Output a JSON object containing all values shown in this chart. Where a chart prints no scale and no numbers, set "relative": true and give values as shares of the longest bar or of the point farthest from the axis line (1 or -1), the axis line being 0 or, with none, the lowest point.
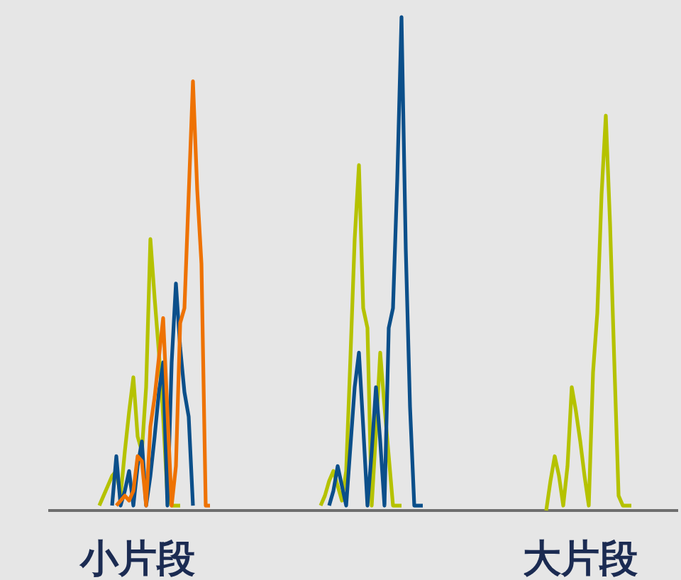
{
  "chart_data": {
    "type": "line",
    "relative": true,
    "categories": [
      null,
      null,
      null,
      null,
      null,
      null,
      null,
      null,
      null,
      null,
      null,
      null,
      null,
      null,
      null,
      null,
      null,
      null,
      null,
      null,
      null,
      "小片段",
      null,
      null,
      null,
      null,
      null,
      null,
      null,
      null,
      null,
      null,
      null,
      null,
      null,
      null,
      null,
      null,
      null,
      null,
      null,
      null,
      null,
      null,
      null,
      null,
      null,
      null,
      null,
      null,
      null,
      null,
      null,
      null,
      null,
      null,
      null,
      null,
      null,
      null,
      null,
      null,
      null,
      null,
      null,
      null,
      null,
      null,
      null,
      null,
      null,
      null,
      null,
      null,
      null,
      null,
      null,
      null,
      null,
      null,
      null,
      null,
      null,
      null,
      null,
      null,
      null,
      null,
      null,
      null,
      null,
      null,
      null,
      null,
      null,
      null,
      null,
      null,
      null,
      null,
      null,
      null,
      null,
      null,
      null,
      null,
      null,
      null,
      null,
      null,
      null,
      null,
      null,
      null,
      null,
      null,
      null,
      null,
      null,
      null,
      null,
      null,
      null,
      null,
      null,
      "大片段",
      null,
      null,
      null,
      null,
      null,
      null,
      null,
      null,
      null,
      null,
      null,
      null,
      null,
      null,
      null,
      null,
      null,
      null,
      null,
      null
    ],
    "series": [
      {
        "color": "#b5c200",
        "values": [
          null,
          null,
          null,
          null,
          null,
          null,
          null,
          null,
          null,
          null,
          null,
          null,
          0.01,
          0.03,
          0.05,
          0.07,
          0.08,
          0.03,
          0.12,
          0.2,
          0.27,
          0.15,
          0.12,
          0.25,
          0.55,
          0.43,
          0.32,
          0.19,
          0.03,
          0.01,
          0.01,
          0.01,
          null,
          null,
          null,
          null,
          null,
          null,
          null,
          null,
          null,
          null,
          null,
          null,
          null,
          null,
          null,
          null,
          null,
          null,
          null,
          null,
          null,
          null,
          null,
          null,
          null,
          null,
          null,
          null,
          null,
          null,
          null,
          null,
          null,
          null,
          null,
          null,
          null,
          null,
          null,
          null,
          null,
          null,
          null,
          null,
          null,
          null,
          null,
          null,
          null,
          null,
          null,
          null,
          null,
          null,
          null,
          null,
          null,
          null,
          null,
          null,
          null,
          null,
          null,
          null,
          null,
          null,
          null,
          null,
          null,
          null,
          null,
          null,
          null,
          null,
          null,
          null,
          null,
          null,
          null,
          null,
          null,
          null,
          null,
          null,
          null,
          null,
          null,
          null,
          null,
          null,
          null,
          null,
          null,
          null,
          null,
          null,
          null,
          null,
          null,
          null,
          null,
          null,
          null,
          null,
          null,
          null,
          null,
          null,
          null,
          null,
          null,
          null,
          null,
          null
        ]
      },
      {
        "color": "#b5c200",
        "values": [
          null,
          null,
          null,
          null,
          null,
          null,
          null,
          null,
          null,
          null,
          null,
          null,
          null,
          null,
          null,
          null,
          null,
          null,
          null,
          null,
          null,
          null,
          null,
          null,
          null,
          null,
          null,
          null,
          null,
          null,
          null,
          null,
          null,
          null,
          null,
          null,
          null,
          null,
          null,
          null,
          null,
          null,
          null,
          null,
          null,
          null,
          null,
          null,
          null,
          null,
          null,
          null,
          null,
          null,
          null,
          null,
          null,
          null,
          null,
          null,
          null,
          null,
          null,
          null,
          0.01,
          0.03,
          0.06,
          0.08,
          0.05,
          0.02,
          0.08,
          0.31,
          0.55,
          0.7,
          0.41,
          0.37,
          0.01,
          0.16,
          0.32,
          0.21,
          0.11,
          0.01,
          0.01,
          0.01,
          null,
          null,
          null,
          null,
          null,
          null,
          null,
          null,
          null,
          null,
          null,
          null,
          null,
          null,
          null,
          null,
          null,
          null,
          null,
          null,
          null,
          null,
          null,
          null,
          null,
          null,
          null,
          null,
          null,
          null,
          null,
          null,
          null,
          null,
          null,
          null,
          null,
          null,
          null,
          null,
          null,
          null,
          null,
          null,
          null,
          null,
          null,
          null,
          null,
          null,
          null,
          null,
          null,
          null,
          null,
          null,
          null,
          null,
          null,
          null,
          null,
          null
        ]
      },
      {
        "color": "#b5c200",
        "values": [
          null,
          null,
          null,
          null,
          null,
          null,
          null,
          null,
          null,
          null,
          null,
          null,
          null,
          null,
          null,
          null,
          null,
          null,
          null,
          null,
          null,
          null,
          null,
          null,
          null,
          null,
          null,
          null,
          null,
          null,
          null,
          null,
          null,
          null,
          null,
          null,
          null,
          null,
          null,
          null,
          null,
          null,
          null,
          null,
          null,
          null,
          null,
          null,
          null,
          null,
          null,
          null,
          null,
          null,
          null,
          null,
          null,
          null,
          null,
          null,
          null,
          null,
          null,
          null,
          null,
          null,
          null,
          null,
          null,
          null,
          null,
          null,
          null,
          null,
          null,
          null,
          null,
          null,
          null,
          null,
          null,
          null,
          null,
          null,
          null,
          null,
          null,
          null,
          null,
          null,
          null,
          null,
          null,
          null,
          null,
          null,
          null,
          null,
          null,
          null,
          null,
          null,
          null,
          null,
          null,
          null,
          null,
          null,
          null,
          null,
          null,
          null,
          null,
          null,
          null,
          null,
          null,
          0,
          0.06,
          0.11,
          0.07,
          0.01,
          0.09,
          0.25,
          0.2,
          0.14,
          0.07,
          0.01,
          0.28,
          0.4,
          0.64,
          0.8,
          0.58,
          0.3,
          0.03,
          0.01,
          0.01,
          0.01,
          null,
          null,
          null,
          null,
          null,
          null,
          null,
          null
        ]
      },
      {
        "color": "#0b4f8a",
        "values": [
          null,
          null,
          null,
          null,
          null,
          null,
          null,
          null,
          null,
          null,
          null,
          null,
          null,
          null,
          null,
          0.01,
          0.11,
          0.01,
          0.04,
          0.08,
          0.01,
          0.09,
          0.14,
          0.01,
          0.07,
          0.15,
          0.24,
          0.3,
          0.01,
          0.3,
          0.46,
          0.33,
          0.24,
          0.19,
          0.01,
          null,
          null,
          null,
          null,
          null,
          null,
          null,
          null,
          null,
          null,
          null,
          null,
          null,
          null,
          null,
          null,
          null,
          null,
          null,
          null,
          null,
          null,
          null,
          null,
          null,
          null,
          null,
          null,
          null,
          null,
          null,
          null,
          null,
          null,
          null,
          null,
          null,
          null,
          null,
          null,
          null,
          null,
          null,
          null,
          null,
          null,
          null,
          null,
          null,
          null,
          null,
          null,
          null,
          null,
          null,
          null,
          null,
          null,
          null,
          null,
          null,
          null,
          null,
          null,
          null,
          null,
          null,
          null,
          null,
          null,
          null,
          null,
          null,
          null,
          null,
          null,
          null,
          null,
          null,
          null,
          null,
          null,
          null,
          null,
          null,
          null,
          null,
          null,
          null,
          null,
          null,
          null,
          null,
          null,
          null,
          null,
          null,
          null,
          null,
          null,
          null,
          null,
          null,
          null,
          null,
          null,
          null,
          null,
          null,
          null,
          null
        ]
      },
      {
        "color": "#0b4f8a",
        "values": [
          null,
          null,
          null,
          null,
          null,
          null,
          null,
          null,
          null,
          null,
          null,
          null,
          null,
          null,
          null,
          null,
          null,
          null,
          null,
          null,
          null,
          null,
          null,
          null,
          null,
          null,
          null,
          null,
          null,
          null,
          null,
          null,
          null,
          null,
          null,
          null,
          null,
          null,
          null,
          null,
          null,
          null,
          null,
          null,
          null,
          null,
          null,
          null,
          null,
          null,
          null,
          null,
          null,
          null,
          null,
          null,
          null,
          null,
          null,
          null,
          null,
          null,
          null,
          null,
          null,
          null,
          0.01,
          0.04,
          0.09,
          0.05,
          0.01,
          0.13,
          0.25,
          0.32,
          0.17,
          0.01,
          0.12,
          0.25,
          0.14,
          0.01,
          0.37,
          0.41,
          0.67,
          1.0,
          0.53,
          0.21,
          0.01,
          0.01,
          0.01,
          null,
          null,
          null,
          null,
          null,
          null,
          null,
          null,
          null,
          null,
          null,
          null,
          null,
          null,
          null,
          null,
          null,
          null,
          null,
          null,
          null,
          null,
          null,
          null,
          null,
          null,
          null,
          null,
          null,
          null,
          null,
          null,
          null,
          null,
          null,
          null,
          null,
          null,
          null,
          null,
          null,
          null,
          null,
          null,
          null,
          null,
          null,
          null,
          null,
          null,
          null,
          null,
          null,
          null,
          null,
          null,
          null
        ]
      },
      {
        "color": "#ee7203",
        "values": [
          null,
          null,
          null,
          null,
          null,
          null,
          null,
          null,
          null,
          null,
          null,
          null,
          null,
          null,
          null,
          null,
          0.01,
          0.02,
          0.03,
          0.02,
          0.04,
          0.11,
          0.1,
          0.01,
          0.17,
          0.23,
          0.31,
          0.39,
          0.2,
          0.01,
          0.09,
          0.38,
          0.41,
          0.64,
          0.87,
          0.65,
          0.5,
          0.01,
          0.01,
          null,
          null,
          null,
          null,
          null,
          null,
          null,
          null,
          null,
          null,
          null,
          null,
          null,
          null,
          null,
          null,
          null,
          null,
          null,
          null,
          null,
          null,
          null,
          null,
          null,
          null,
          null,
          null,
          null,
          null,
          null,
          null,
          null,
          null,
          null,
          null,
          null,
          null,
          null,
          null,
          null,
          null,
          null,
          null,
          null,
          null,
          null,
          null,
          null,
          null,
          null,
          null,
          null,
          null,
          null,
          null,
          null,
          null,
          null,
          null,
          null,
          null,
          null,
          null,
          null,
          null,
          null,
          null,
          null,
          null,
          null,
          null,
          null,
          null,
          null,
          null,
          null,
          null,
          null,
          null,
          null,
          null,
          null,
          null,
          null,
          null,
          null,
          null,
          null,
          null,
          null,
          null,
          null,
          null,
          null,
          null,
          null,
          null,
          null,
          null,
          null,
          null,
          null,
          null,
          null,
          null,
          null
        ]
      }
    ]
  }
}
